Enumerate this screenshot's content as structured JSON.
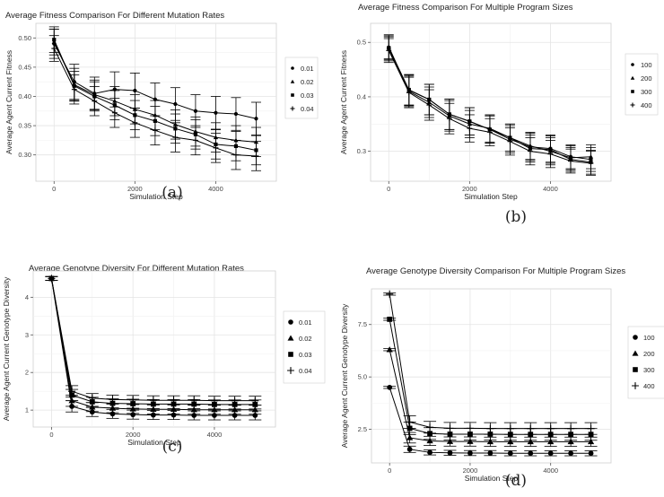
{
  "chart_data": [
    {
      "type": "line",
      "panel_label": "(a)",
      "title": "Average Fitness Comparison For Different Mutation Rates",
      "xlabel": "Simulation Step",
      "ylabel": "Average Agent Current Fitness",
      "xlim": [
        -450,
        5500
      ],
      "ylim": [
        0.255,
        0.525
      ],
      "xticks": [
        0,
        2000,
        4000
      ],
      "xtick_labels": [
        "0",
        "2000",
        "4000"
      ],
      "yticks": [
        0.3,
        0.35,
        0.4,
        0.45,
        0.5
      ],
      "ytick_labels": [
        "0.30",
        "0.35",
        "0.40",
        "0.45",
        "0.50"
      ],
      "grid": true,
      "legend_position": "right",
      "x": [
        0,
        500,
        1000,
        1500,
        2000,
        2500,
        3000,
        3500,
        4000,
        4500,
        5000
      ],
      "series": [
        {
          "name": "0.01",
          "marker": "circle",
          "values": [
            0.49,
            0.425,
            0.405,
            0.412,
            0.41,
            0.395,
            0.387,
            0.375,
            0.372,
            0.37,
            0.362
          ],
          "errors": [
            0.025,
            0.03,
            0.028,
            0.03,
            0.03,
            0.028,
            0.028,
            0.028,
            0.028,
            0.028,
            0.028
          ]
        },
        {
          "name": "0.02",
          "marker": "triangle",
          "values": [
            0.493,
            0.42,
            0.403,
            0.392,
            0.378,
            0.368,
            0.352,
            0.34,
            0.33,
            0.325,
            0.322
          ],
          "errors": [
            0.022,
            0.028,
            0.025,
            0.025,
            0.025,
            0.025,
            0.025,
            0.025,
            0.025,
            0.025,
            0.025
          ]
        },
        {
          "name": "0.03",
          "marker": "square",
          "values": [
            0.497,
            0.418,
            0.4,
            0.385,
            0.368,
            0.358,
            0.345,
            0.335,
            0.318,
            0.315,
            0.308
          ],
          "errors": [
            0.022,
            0.025,
            0.025,
            0.025,
            0.025,
            0.025,
            0.025,
            0.025,
            0.025,
            0.025,
            0.025
          ]
        },
        {
          "name": "0.04",
          "marker": "plus",
          "values": [
            0.482,
            0.412,
            0.392,
            0.372,
            0.355,
            0.342,
            0.33,
            0.325,
            0.312,
            0.3,
            0.298
          ],
          "errors": [
            0.022,
            0.025,
            0.025,
            0.025,
            0.025,
            0.025,
            0.025,
            0.025,
            0.025,
            0.025,
            0.025
          ]
        }
      ]
    },
    {
      "type": "line",
      "panel_label": "(b)",
      "title": "Average Fitness Comparison For Multiple Program Sizes",
      "xlabel": "Simulation Step",
      "ylabel": "Average Agent Current Fitness",
      "xlim": [
        -450,
        5500
      ],
      "ylim": [
        0.245,
        0.535
      ],
      "xticks": [
        0,
        2000,
        4000
      ],
      "xtick_labels": [
        "0",
        "2000",
        "4000"
      ],
      "yticks": [
        0.3,
        0.4,
        0.5
      ],
      "ytick_labels": [
        "0.3",
        "0.4",
        "0.5"
      ],
      "grid": true,
      "legend_position": "right",
      "x": [
        0,
        500,
        1000,
        1500,
        2000,
        2500,
        3000,
        3500,
        4000,
        4500,
        5000
      ],
      "series": [
        {
          "name": "100",
          "marker": "circle",
          "values": [
            0.488,
            0.412,
            0.395,
            0.368,
            0.355,
            0.34,
            0.322,
            0.308,
            0.305,
            0.29,
            0.285
          ],
          "errors": [
            0.022,
            0.028,
            0.028,
            0.028,
            0.025,
            0.025,
            0.025,
            0.025,
            0.025,
            0.022,
            0.022
          ]
        },
        {
          "name": "200",
          "marker": "triangle",
          "values": [
            0.492,
            0.41,
            0.39,
            0.365,
            0.35,
            0.342,
            0.325,
            0.31,
            0.3,
            0.288,
            0.29
          ],
          "errors": [
            0.022,
            0.028,
            0.028,
            0.028,
            0.025,
            0.025,
            0.025,
            0.025,
            0.025,
            0.022,
            0.022
          ]
        },
        {
          "name": "300",
          "marker": "square",
          "values": [
            0.49,
            0.413,
            0.395,
            0.368,
            0.355,
            0.34,
            0.325,
            0.305,
            0.303,
            0.285,
            0.28
          ],
          "errors": [
            0.022,
            0.028,
            0.028,
            0.028,
            0.025,
            0.025,
            0.025,
            0.025,
            0.025,
            0.022,
            0.022
          ]
        },
        {
          "name": "400",
          "marker": "plus",
          "values": [
            0.485,
            0.408,
            0.385,
            0.36,
            0.342,
            0.335,
            0.318,
            0.3,
            0.295,
            0.282,
            0.278
          ],
          "errors": [
            0.022,
            0.028,
            0.028,
            0.028,
            0.025,
            0.025,
            0.025,
            0.025,
            0.025,
            0.022,
            0.022
          ]
        }
      ]
    },
    {
      "type": "line",
      "panel_label": "(c)",
      "title": "Average Genotype Diversity For Different Mutation Rates",
      "xlabel": "Simulation Step",
      "ylabel": "Average Agent Current Genotype Diversity",
      "xlim": [
        -450,
        5500
      ],
      "ylim": [
        0.55,
        4.7
      ],
      "xticks": [
        0,
        2000,
        4000
      ],
      "xtick_labels": [
        "0",
        "2000",
        "4000"
      ],
      "yticks": [
        1,
        2,
        3,
        4
      ],
      "ytick_labels": [
        "1",
        "2",
        "3",
        "4"
      ],
      "grid": true,
      "legend_position": "right",
      "x": [
        0,
        500,
        1000,
        1500,
        2000,
        2500,
        3000,
        3500,
        4000,
        4500,
        5000
      ],
      "series": [
        {
          "name": "0.01",
          "marker": "circle",
          "values": [
            4.5,
            1.1,
            0.95,
            0.9,
            0.88,
            0.87,
            0.87,
            0.86,
            0.86,
            0.86,
            0.86
          ],
          "errors": [
            0.05,
            0.15,
            0.12,
            0.12,
            0.12,
            0.12,
            0.12,
            0.12,
            0.12,
            0.12,
            0.12
          ]
        },
        {
          "name": "0.02",
          "marker": "triangle",
          "values": [
            4.5,
            1.25,
            1.08,
            1.05,
            1.03,
            1.02,
            1.02,
            1.01,
            1.01,
            1.01,
            1.01
          ],
          "errors": [
            0.05,
            0.15,
            0.12,
            0.12,
            0.12,
            0.12,
            0.12,
            0.12,
            0.12,
            0.12,
            0.12
          ]
        },
        {
          "name": "0.03",
          "marker": "square",
          "values": [
            4.5,
            1.4,
            1.22,
            1.18,
            1.17,
            1.16,
            1.16,
            1.16,
            1.15,
            1.15,
            1.15
          ],
          "errors": [
            0.05,
            0.15,
            0.12,
            0.12,
            0.12,
            0.12,
            0.12,
            0.12,
            0.12,
            0.12,
            0.12
          ]
        },
        {
          "name": "0.04",
          "marker": "plus",
          "values": [
            4.5,
            1.5,
            1.32,
            1.28,
            1.27,
            1.26,
            1.26,
            1.26,
            1.25,
            1.25,
            1.25
          ],
          "errors": [
            0.05,
            0.15,
            0.12,
            0.12,
            0.12,
            0.12,
            0.12,
            0.12,
            0.12,
            0.12,
            0.12
          ]
        }
      ]
    },
    {
      "type": "line",
      "panel_label": "(d)",
      "title": "Average Genotype Diversity Comparison For Multiple Program Sizes",
      "xlabel": "Simulation Step",
      "ylabel": "Average Agent Current Genotype Diversity",
      "xlim": [
        -450,
        5500
      ],
      "ylim": [
        0.9,
        9.2
      ],
      "xticks": [
        0,
        2000,
        4000
      ],
      "xtick_labels": [
        "0",
        "2000",
        "4000"
      ],
      "yticks": [
        2.5,
        5.0,
        7.5
      ],
      "ytick_labels": [
        "2.5",
        "5.0",
        "7.5"
      ],
      "grid": true,
      "legend_position": "right",
      "x": [
        0,
        500,
        1000,
        1500,
        2000,
        2500,
        3000,
        3500,
        4000,
        4500,
        5000
      ],
      "series": [
        {
          "name": "100",
          "marker": "circle",
          "values": [
            4.5,
            1.55,
            1.4,
            1.38,
            1.37,
            1.37,
            1.36,
            1.36,
            1.36,
            1.36,
            1.36
          ],
          "errors": [
            0.05,
            0.15,
            0.12,
            0.12,
            0.12,
            0.12,
            0.12,
            0.12,
            0.12,
            0.12,
            0.12
          ]
        },
        {
          "name": "200",
          "marker": "triangle",
          "values": [
            6.3,
            2.1,
            1.95,
            1.92,
            1.92,
            1.91,
            1.91,
            1.91,
            1.91,
            1.91,
            1.91
          ],
          "errors": [
            0.05,
            0.25,
            0.22,
            0.22,
            0.22,
            0.22,
            0.22,
            0.22,
            0.22,
            0.22,
            0.22
          ]
        },
        {
          "name": "300",
          "marker": "square",
          "values": [
            7.75,
            2.55,
            2.3,
            2.27,
            2.27,
            2.27,
            2.26,
            2.26,
            2.26,
            2.26,
            2.26
          ],
          "errors": [
            0.05,
            0.3,
            0.28,
            0.28,
            0.28,
            0.28,
            0.28,
            0.28,
            0.28,
            0.28,
            0.28
          ]
        },
        {
          "name": "400",
          "marker": "plus",
          "values": [
            8.95,
            2.85,
            2.6,
            2.55,
            2.55,
            2.54,
            2.54,
            2.54,
            2.54,
            2.54,
            2.54
          ],
          "errors": [
            0.05,
            0.3,
            0.28,
            0.28,
            0.28,
            0.28,
            0.28,
            0.28,
            0.28,
            0.28,
            0.28
          ]
        }
      ]
    }
  ]
}
